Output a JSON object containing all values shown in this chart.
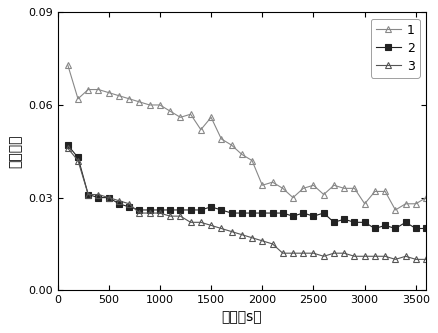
{
  "title": "",
  "xlabel": "时间（s）",
  "ylabel": "摩擦系数",
  "xlim": [
    0,
    3600
  ],
  "ylim": [
    0.0,
    0.09
  ],
  "yticks": [
    0.0,
    0.03,
    0.06,
    0.09
  ],
  "xticks": [
    0,
    500,
    1000,
    1500,
    2000,
    2500,
    3000,
    3500
  ],
  "series1": {
    "label": "1",
    "x": [
      100,
      200,
      300,
      400,
      500,
      600,
      700,
      800,
      900,
      1000,
      1100,
      1200,
      1300,
      1400,
      1500,
      1600,
      1700,
      1800,
      1900,
      2000,
      2100,
      2200,
      2300,
      2400,
      2500,
      2600,
      2700,
      2800,
      2900,
      3000,
      3100,
      3200,
      3300,
      3400,
      3500,
      3600
    ],
    "y": [
      0.073,
      0.062,
      0.065,
      0.065,
      0.064,
      0.063,
      0.062,
      0.061,
      0.06,
      0.06,
      0.058,
      0.056,
      0.057,
      0.052,
      0.056,
      0.049,
      0.047,
      0.044,
      0.042,
      0.034,
      0.035,
      0.033,
      0.03,
      0.033,
      0.034,
      0.031,
      0.034,
      0.033,
      0.033,
      0.028,
      0.032,
      0.032,
      0.026,
      0.028,
      0.028,
      0.03
    ],
    "marker": "^",
    "color": "#888888",
    "linewidth": 0.8,
    "markersize": 4
  },
  "series2": {
    "label": "2",
    "x": [
      100,
      200,
      300,
      400,
      500,
      600,
      700,
      800,
      900,
      1000,
      1100,
      1200,
      1300,
      1400,
      1500,
      1600,
      1700,
      1800,
      1900,
      2000,
      2100,
      2200,
      2300,
      2400,
      2500,
      2600,
      2700,
      2800,
      2900,
      3000,
      3100,
      3200,
      3300,
      3400,
      3500,
      3600
    ],
    "y": [
      0.047,
      0.043,
      0.031,
      0.03,
      0.03,
      0.028,
      0.027,
      0.026,
      0.026,
      0.026,
      0.026,
      0.026,
      0.026,
      0.026,
      0.027,
      0.026,
      0.025,
      0.025,
      0.025,
      0.025,
      0.025,
      0.025,
      0.024,
      0.025,
      0.024,
      0.025,
      0.022,
      0.023,
      0.022,
      0.022,
      0.02,
      0.021,
      0.02,
      0.022,
      0.02,
      0.02
    ],
    "marker": "s",
    "color": "#222222",
    "linewidth": 0.8,
    "markersize": 4
  },
  "series3": {
    "label": "3",
    "x": [
      100,
      200,
      300,
      400,
      500,
      600,
      700,
      800,
      900,
      1000,
      1100,
      1200,
      1300,
      1400,
      1500,
      1600,
      1700,
      1800,
      1900,
      2000,
      2100,
      2200,
      2300,
      2400,
      2500,
      2600,
      2700,
      2800,
      2900,
      3000,
      3100,
      3200,
      3300,
      3400,
      3500,
      3600
    ],
    "y": [
      0.046,
      0.042,
      0.031,
      0.031,
      0.03,
      0.029,
      0.028,
      0.025,
      0.025,
      0.025,
      0.024,
      0.024,
      0.022,
      0.022,
      0.021,
      0.02,
      0.019,
      0.018,
      0.017,
      0.016,
      0.015,
      0.012,
      0.012,
      0.012,
      0.012,
      0.011,
      0.012,
      0.012,
      0.011,
      0.011,
      0.011,
      0.011,
      0.01,
      0.011,
      0.01,
      0.01
    ],
    "marker": "^",
    "color": "#555555",
    "linewidth": 0.8,
    "markersize": 4
  },
  "background_color": "#ffffff",
  "legend_loc": "upper right"
}
